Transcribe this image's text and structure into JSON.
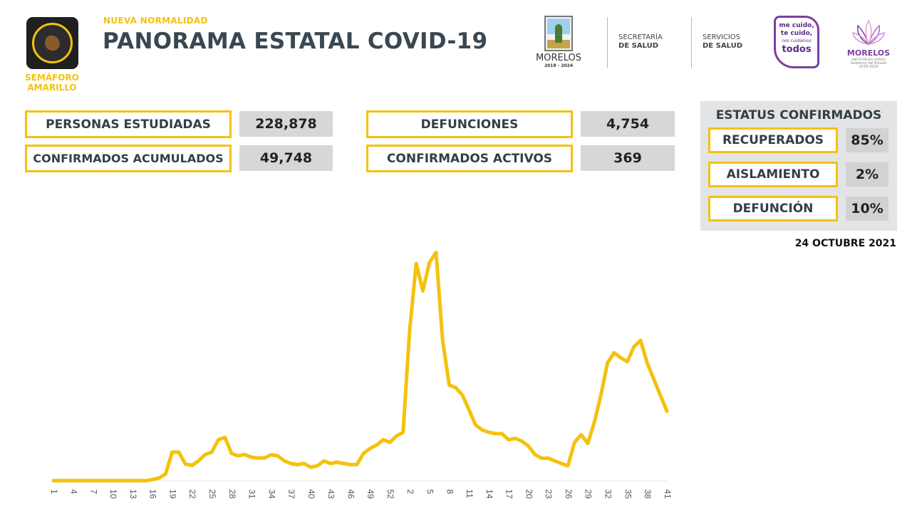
{
  "header": {
    "semaforo_label": "SEMÁFORO AMARILLO",
    "kicker": "NUEVA NORMALIDAD",
    "title": "PANORAMA ESTATAL COVID-19",
    "logos": {
      "morelos": "MORELOS",
      "morelos_years": "2018 - 2024",
      "secretaria_l1": "SECRETARÍA",
      "secretaria_l2": "DE SALUD",
      "servicios_l1": "SERVICIOS",
      "servicios_l2": "DE SALUD",
      "mecuido_l1": "me cuido,",
      "mecuido_l2": "te cuido,",
      "mecuido_l3": "nos cuidamos",
      "mecuido_l4": "todos",
      "gob_name": "MORELOS",
      "gob_sub": "ANFITRIÓN DEL MUNDO",
      "gob_line": "Gobierno del Estado",
      "gob_years": "2018-2024"
    }
  },
  "stats": {
    "estudiadas_label": "PERSONAS ESTUDIADAS",
    "estudiadas_value": "228,878",
    "acumulados_label": "CONFIRMADOS ACUMULADOS",
    "acumulados_value": "49,748",
    "defunciones_label": "DEFUNCIONES",
    "defunciones_value": "4,754",
    "activos_label": "CONFIRMADOS ACTIVOS",
    "activos_value": "369"
  },
  "status": {
    "title": "ESTATUS CONFIRMADOS",
    "recuperados_label": "RECUPERADOS",
    "recuperados_value": "85%",
    "aislamiento_label": "AISLAMIENTO",
    "aislamiento_value": "2%",
    "defuncion_label": "DEFUNCIÓN",
    "defuncion_value": "10%"
  },
  "date": "24 OCTUBRE 2021",
  "colors": {
    "accent": "#f4c20d",
    "text": "#333f48",
    "value_bg": "#d5d7d9",
    "purple": "#7b3fa0"
  },
  "chart_data": {
    "type": "line",
    "color": "#f4c20d",
    "ylim": [
      0,
      100
    ],
    "x_tick_labels": [
      "1",
      "4",
      "7",
      "10",
      "13",
      "16",
      "19",
      "22",
      "25",
      "28",
      "31",
      "34",
      "37",
      "40",
      "43",
      "46",
      "49",
      "52",
      "2",
      "5",
      "8",
      "11",
      "14",
      "17",
      "20",
      "23",
      "26",
      "29",
      "32",
      "35",
      "38",
      "41"
    ],
    "values": [
      0,
      0,
      0,
      0,
      0,
      0,
      0,
      0,
      0,
      0,
      0,
      0,
      0,
      0,
      0,
      0.4,
      1.0,
      2.5,
      10.8,
      10.8,
      6.3,
      5.8,
      7.5,
      9.9,
      10.8,
      15.5,
      16.4,
      10.3,
      9.4,
      9.9,
      8.9,
      8.6,
      8.6,
      9.8,
      9.4,
      7.5,
      6.5,
      6.1,
      6.5,
      5.1,
      5.6,
      7.5,
      6.5,
      7.0,
      6.5,
      6.1,
      6.1,
      10.3,
      12.2,
      13.5,
      15.5,
      14.5,
      16.9,
      18.3,
      56.8,
      82.2,
      71.8,
      82.6,
      86.4,
      53.1,
      36.2,
      35.2,
      32.4,
      26.8,
      21.1,
      19.2,
      18.3,
      17.8,
      17.8,
      15.5,
      16.0,
      15.0,
      13.1,
      9.9,
      8.5,
      8.5,
      7.5,
      6.5,
      5.6,
      14.5,
      17.4,
      14.1,
      22.1,
      32.4,
      44.6,
      48.4,
      46.5,
      45.1,
      50.7,
      53.1,
      44.6,
      38.5,
      32.4,
      26.3
    ]
  }
}
